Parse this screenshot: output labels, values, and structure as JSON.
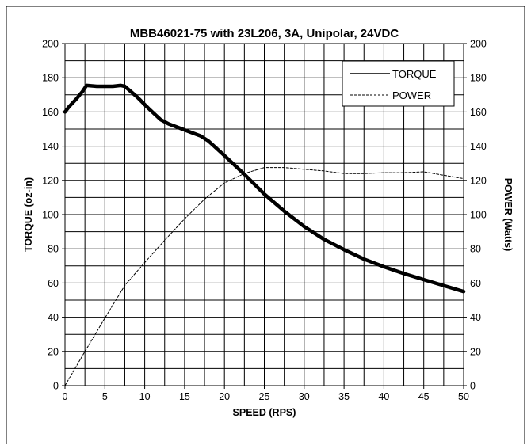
{
  "chart_data": {
    "type": "line",
    "title": "MBB46021-75 with 23L206, 3A, Unipolar, 24VDC",
    "xlabel": "SPEED (RPS)",
    "ylabel": "TORQUE (oz-in)",
    "y2label": "POWER (Watts)",
    "xlim": [
      0,
      50
    ],
    "ylim": [
      0,
      200
    ],
    "y2lim": [
      0,
      200
    ],
    "x_ticks": [
      "0",
      "5",
      "10",
      "15",
      "20",
      "25",
      "30",
      "35",
      "40",
      "45",
      "50"
    ],
    "y_ticks": [
      "0",
      "20",
      "40",
      "60",
      "80",
      "100",
      "120",
      "140",
      "160",
      "180",
      "200"
    ],
    "y2_ticks": [
      "0",
      "20",
      "40",
      "60",
      "80",
      "100",
      "120",
      "140",
      "160",
      "180",
      "200"
    ],
    "grid": true,
    "legend_position": "top-right",
    "series": [
      {
        "name": "TORQUE",
        "axis": "left",
        "style": "solid-thick",
        "x": [
          0,
          0.5,
          1.5,
          2.2,
          2.7,
          4,
          6,
          7,
          7.5,
          9,
          10.5,
          12,
          13,
          15,
          17,
          18,
          20,
          22.5,
          25,
          27.5,
          30,
          32.5,
          35,
          37.5,
          40,
          42.5,
          45,
          47.5,
          50
        ],
        "values": [
          160,
          163,
          168,
          172,
          175.5,
          175,
          175,
          175.5,
          175,
          169,
          162,
          155.5,
          153,
          149.5,
          146,
          143,
          134.5,
          123.5,
          112,
          102,
          93,
          85.5,
          79.5,
          74,
          69.5,
          65.5,
          62,
          58.5,
          55
        ]
      },
      {
        "name": "POWER",
        "axis": "right",
        "style": "dashed-thin",
        "x": [
          0,
          2.5,
          5,
          7.5,
          10,
          12.5,
          15,
          17.5,
          20,
          22.5,
          25,
          27.5,
          30,
          32.5,
          35,
          37.5,
          40,
          42.5,
          45,
          47.5,
          50
        ],
        "values": [
          0,
          20,
          39.5,
          58.5,
          72,
          85,
          97.5,
          109,
          118.5,
          124,
          127.5,
          127.5,
          126.5,
          125.5,
          124,
          124,
          124.5,
          124.5,
          125,
          123,
          121
        ]
      }
    ]
  }
}
